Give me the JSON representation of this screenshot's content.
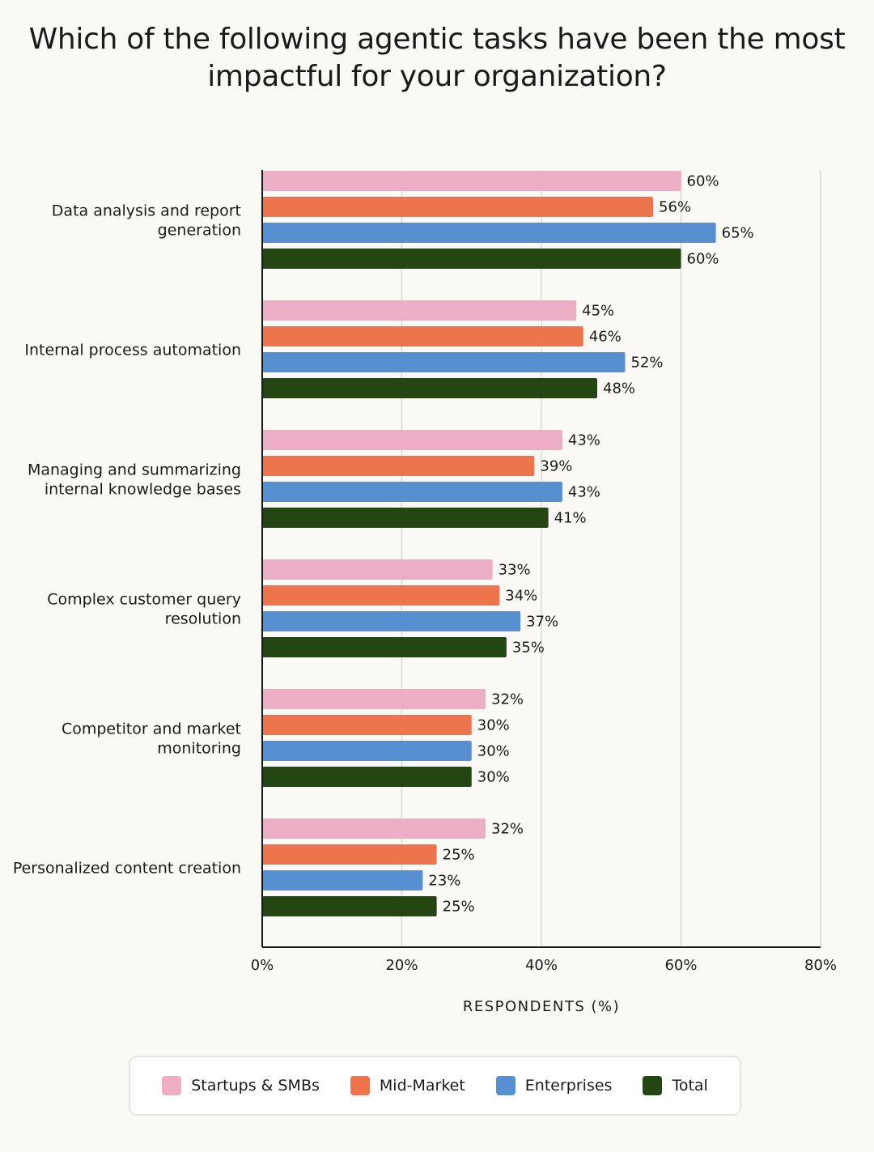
{
  "title_lines": [
    "Which of the following agentic tasks have been the most",
    "impactful for your organization?"
  ],
  "chart_data": {
    "type": "bar",
    "orientation": "horizontal",
    "title": "Which of the following agentic tasks have been the most impactful for your organization?",
    "xlabel": "RESPONDENTS (%)",
    "ylabel": "",
    "xlim": [
      0,
      80
    ],
    "xticks": [
      0,
      20,
      40,
      60,
      80
    ],
    "xtick_labels": [
      "0%",
      "20%",
      "40%",
      "60%",
      "80%"
    ],
    "grid": "vertical",
    "legend_position": "bottom",
    "categories": [
      [
        "Data analysis and report",
        "generation"
      ],
      [
        "Internal process automation"
      ],
      [
        "Managing and summarizing",
        "internal knowledge bases"
      ],
      [
        "Complex customer query",
        "resolution"
      ],
      [
        "Competitor and market",
        "monitoring"
      ],
      [
        "Personalized content creation"
      ]
    ],
    "series": [
      {
        "name": "Startups & SMBs",
        "color": "#ecadc5",
        "values": [
          60,
          45,
          43,
          33,
          32,
          32
        ],
        "labels": [
          "60%",
          "45%",
          "43%",
          "33%",
          "32%",
          "32%"
        ]
      },
      {
        "name": "Mid-Market",
        "color": "#ee744e",
        "values": [
          56,
          46,
          39,
          34,
          30,
          25
        ],
        "labels": [
          "56%",
          "46%",
          "39%",
          "34%",
          "30%",
          "25%"
        ]
      },
      {
        "name": "Enterprises",
        "color": "#5690d1",
        "values": [
          65,
          52,
          43,
          37,
          30,
          23
        ],
        "labels": [
          "65%",
          "52%",
          "43%",
          "37%",
          "30%",
          "23%"
        ]
      },
      {
        "name": "Total",
        "color": "#234612",
        "values": [
          60,
          48,
          41,
          35,
          30,
          25
        ],
        "labels": [
          "60%",
          "48%",
          "41%",
          "35%",
          "30%",
          "25%"
        ]
      }
    ]
  }
}
